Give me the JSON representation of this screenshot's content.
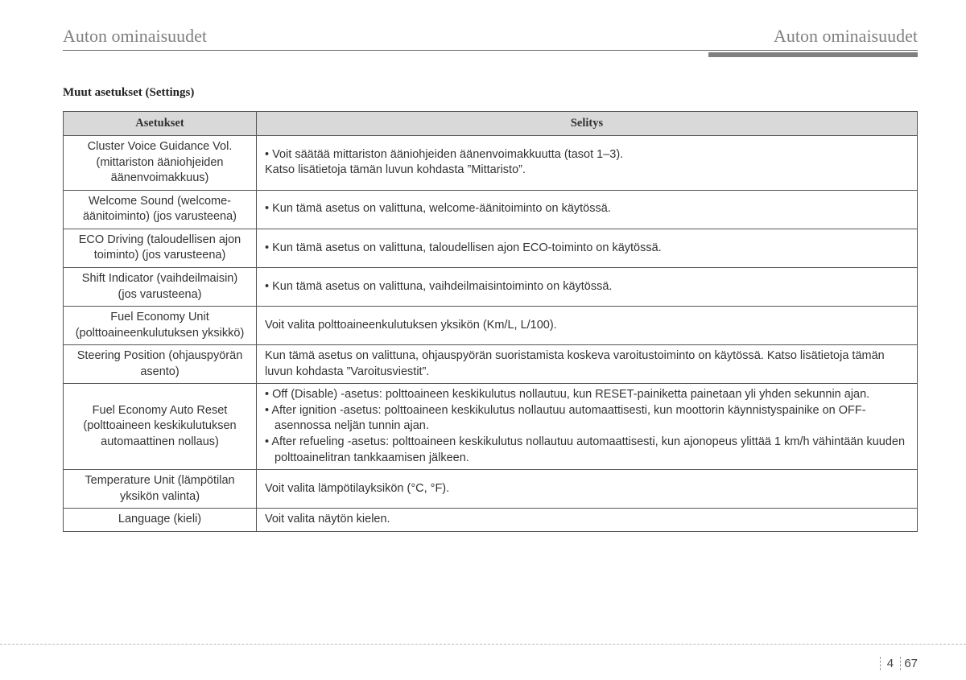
{
  "header": {
    "left": "Auton ominaisuudet",
    "right": "Auton ominaisuudet"
  },
  "section_title": "Muut asetukset (Settings)",
  "table": {
    "columns": [
      "Asetukset",
      "Selitys"
    ],
    "rows": [
      {
        "setting": "Cluster Voice Guidance Vol. (mittariston ääniohjeiden äänenvoimakkuus)",
        "desc": "• Voit säätää mittariston ääniohjeiden äänenvoimakkuutta (tasot 1–3).\nKatso lisätietoja tämän luvun kohdasta ”Mittaristo”."
      },
      {
        "setting": "Welcome Sound (welcome-äänitoiminto) (jos varusteena)",
        "desc": "• Kun tämä asetus on valittuna, welcome-äänitoiminto on käytössä."
      },
      {
        "setting": "ECO Driving (taloudellisen ajon toiminto) (jos varusteena)",
        "desc": "• Kun tämä asetus on valittuna, taloudellisen ajon ECO-toiminto on käytössä."
      },
      {
        "setting": "Shift Indicator (vaihdeilmaisin) (jos varusteena)",
        "desc": "• Kun tämä asetus on valittuna, vaihdeilmaisintoiminto on käytössä."
      },
      {
        "setting": "Fuel Economy Unit (polttoaineenkulutuksen yksikkö)",
        "desc": "Voit valita polttoaineenkulutuksen yksikön (Km/L, L/100)."
      },
      {
        "setting": "Steering Position (ohjauspyörän asento)",
        "desc": "Kun tämä asetus on valittuna, ohjauspyörän suoristamista koskeva varoitustoiminto on käytössä. Katso lisätietoja tämän luvun kohdasta ”Varoitusviestit”."
      },
      {
        "setting": "Fuel Economy Auto Reset (polttoaineen keskikulutuksen automaattinen nollaus)",
        "bullets": [
          {
            "lead": "Off (Disable) -asetus:",
            "rest": "polttoaineen keskikulutus nollautuu, kun RESET-painiketta painetaan yli yhden sekunnin ajan."
          },
          {
            "lead": "After ignition -asetus:",
            "rest": "polttoaineen keskikulutus nollautuu automaattisesti, kun moottorin käynnistyspainike on OFF-asennossa neljän tunnin ajan."
          },
          {
            "lead": "After refueling -asetus:",
            "rest": "polttoaineen keskikulutus nollautuu automaattisesti, kun ajonopeus ylittää 1 km/h vähintään kuuden polttoainelitran tankkaamisen jälkeen."
          }
        ]
      },
      {
        "setting": "Temperature Unit (lämpötilan yksikön valinta)",
        "desc": "Voit valita lämpötilayksikön (°C, °F)."
      },
      {
        "setting": "Language (kieli)",
        "desc": "Voit valita näytön kielen."
      }
    ]
  },
  "footer": {
    "chapter": "4",
    "page": "67"
  },
  "colors": {
    "header_text": "#808080",
    "header_bar": "#808080",
    "th_bg": "#d9d9d9",
    "border": "#555555",
    "text": "#333333"
  }
}
